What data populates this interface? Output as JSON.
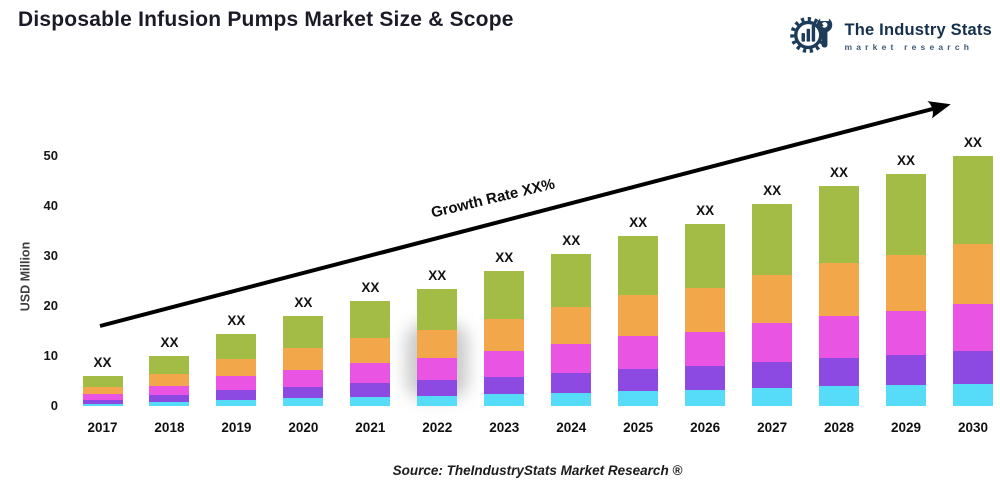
{
  "header": {
    "title": "Disposable Infusion Pumps Market Size & Scope",
    "logo": {
      "name": "The Industry Stats",
      "tagline": "market research"
    }
  },
  "chart_data": {
    "type": "bar",
    "stacked": true,
    "title": "Disposable Infusion Pumps Market Size & Scope",
    "ylabel": "USD Million",
    "ylim": [
      0,
      50
    ],
    "yticks": [
      0,
      10,
      20,
      30,
      40,
      50
    ],
    "grid": false,
    "legend": false,
    "categories": [
      "2017",
      "2018",
      "2019",
      "2020",
      "2021",
      "2022",
      "2023",
      "2024",
      "2025",
      "2026",
      "2027",
      "2028",
      "2029",
      "2030"
    ],
    "bar_value_labels": [
      "XX",
      "XX",
      "XX",
      "XX",
      "XX",
      "XX",
      "XX",
      "XX",
      "XX",
      "XX",
      "XX",
      "XX",
      "XX",
      "XX"
    ],
    "totals": [
      6.0,
      10.0,
      14.5,
      18.0,
      21.0,
      23.5,
      27.0,
      30.5,
      34.0,
      36.5,
      40.5,
      44.0,
      46.5,
      50.0
    ],
    "series": [
      {
        "name": "layer-1-cyan",
        "color": "#56dcf8",
        "values": [
          0.5,
          0.9,
          1.3,
          1.6,
          1.9,
          2.1,
          2.4,
          2.7,
          3.1,
          3.3,
          3.6,
          4.0,
          4.2,
          4.5
        ]
      },
      {
        "name": "layer-2-purple",
        "color": "#8d4ae2",
        "values": [
          0.8,
          1.3,
          1.9,
          2.3,
          2.7,
          3.1,
          3.5,
          4.0,
          4.4,
          4.7,
          5.3,
          5.7,
          6.0,
          6.5
        ]
      },
      {
        "name": "layer-3-magenta",
        "color": "#e955e2",
        "values": [
          1.1,
          1.9,
          2.8,
          3.4,
          4.0,
          4.5,
          5.1,
          5.8,
          6.5,
          6.9,
          7.7,
          8.4,
          8.8,
          9.5
        ]
      },
      {
        "name": "layer-4-orange",
        "color": "#f2a74b",
        "values": [
          1.5,
          2.4,
          3.5,
          4.3,
          5.0,
          5.6,
          6.5,
          7.3,
          8.2,
          8.8,
          9.7,
          10.6,
          11.2,
          12.0
        ]
      },
      {
        "name": "layer-5-green",
        "color": "#a2bc45",
        "values": [
          2.1,
          3.5,
          5.0,
          6.4,
          7.4,
          8.2,
          9.5,
          10.7,
          11.8,
          12.8,
          14.2,
          15.3,
          16.3,
          17.5
        ]
      }
    ],
    "annotation": "Growth Rate XX%",
    "arrow_color": "#000000"
  },
  "footer": {
    "source": "Source: TheIndustryStats Market Research ®"
  }
}
